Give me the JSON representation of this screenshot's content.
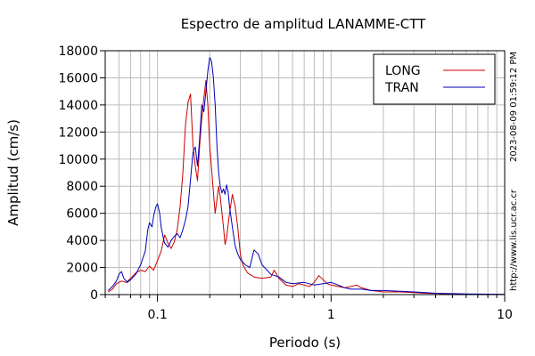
{
  "chart_data": {
    "type": "line",
    "title": "Espectro de amplitud LANAMME-CTT",
    "xlabel": "Periodo (s)",
    "ylabel": "Amplitud (cm/s)",
    "x_scale": "log",
    "xlim": [
      0.05,
      10
    ],
    "ylim": [
      0,
      18000
    ],
    "grid": true,
    "legend_position": "top-right",
    "x_tick_labels": [
      {
        "value": 0.1,
        "label": "0.1"
      },
      {
        "value": 1,
        "label": "1"
      },
      {
        "value": 10,
        "label": "10"
      }
    ],
    "y_ticks": [
      0,
      2000,
      4000,
      6000,
      8000,
      10000,
      12000,
      14000,
      16000,
      18000
    ],
    "side_annotations": [
      "2023-08-09 01:59:12 PM",
      "http://www.lis.ucr.ac.cr"
    ],
    "series": [
      {
        "name": "LONG",
        "color": "#cc0000",
        "points": [
          [
            0.052,
            200
          ],
          [
            0.055,
            400
          ],
          [
            0.058,
            800
          ],
          [
            0.062,
            1000
          ],
          [
            0.066,
            900
          ],
          [
            0.07,
            1200
          ],
          [
            0.075,
            1600
          ],
          [
            0.08,
            1800
          ],
          [
            0.085,
            1700
          ],
          [
            0.09,
            2100
          ],
          [
            0.095,
            1800
          ],
          [
            0.1,
            2500
          ],
          [
            0.105,
            3200
          ],
          [
            0.11,
            4400
          ],
          [
            0.115,
            3800
          ],
          [
            0.12,
            3400
          ],
          [
            0.125,
            3900
          ],
          [
            0.13,
            4800
          ],
          [
            0.135,
            6500
          ],
          [
            0.14,
            9000
          ],
          [
            0.145,
            12500
          ],
          [
            0.15,
            14200
          ],
          [
            0.155,
            14800
          ],
          [
            0.16,
            11000
          ],
          [
            0.165,
            9500
          ],
          [
            0.17,
            8400
          ],
          [
            0.175,
            11000
          ],
          [
            0.18,
            13000
          ],
          [
            0.185,
            14500
          ],
          [
            0.19,
            15800
          ],
          [
            0.195,
            14000
          ],
          [
            0.2,
            11000
          ],
          [
            0.21,
            7600
          ],
          [
            0.215,
            6000
          ],
          [
            0.22,
            7000
          ],
          [
            0.225,
            8000
          ],
          [
            0.23,
            7200
          ],
          [
            0.24,
            5000
          ],
          [
            0.245,
            3700
          ],
          [
            0.25,
            4200
          ],
          [
            0.26,
            6000
          ],
          [
            0.27,
            7400
          ],
          [
            0.28,
            6500
          ],
          [
            0.29,
            5000
          ],
          [
            0.3,
            3000
          ],
          [
            0.31,
            2200
          ],
          [
            0.33,
            1600
          ],
          [
            0.36,
            1300
          ],
          [
            0.4,
            1200
          ],
          [
            0.45,
            1300
          ],
          [
            0.47,
            1800
          ],
          [
            0.5,
            1200
          ],
          [
            0.55,
            700
          ],
          [
            0.6,
            600
          ],
          [
            0.65,
            800
          ],
          [
            0.7,
            700
          ],
          [
            0.75,
            600
          ],
          [
            0.8,
            900
          ],
          [
            0.85,
            1400
          ],
          [
            0.9,
            1100
          ],
          [
            0.95,
            800
          ],
          [
            1.0,
            700
          ],
          [
            1.1,
            600
          ],
          [
            1.2,
            500
          ],
          [
            1.3,
            600
          ],
          [
            1.4,
            700
          ],
          [
            1.5,
            500
          ],
          [
            1.7,
            300
          ],
          [
            2.0,
            200
          ],
          [
            2.5,
            200
          ],
          [
            3.0,
            150
          ],
          [
            3.5,
            100
          ],
          [
            4.0,
            80
          ],
          [
            5.0,
            50
          ],
          [
            6.0,
            30
          ],
          [
            8.0,
            20
          ],
          [
            10.0,
            15
          ]
        ]
      },
      {
        "name": "TRAN",
        "color": "#0000bb",
        "points": [
          [
            0.052,
            300
          ],
          [
            0.055,
            600
          ],
          [
            0.058,
            1000
          ],
          [
            0.06,
            1500
          ],
          [
            0.062,
            1700
          ],
          [
            0.064,
            1200
          ],
          [
            0.067,
            900
          ],
          [
            0.07,
            1100
          ],
          [
            0.075,
            1500
          ],
          [
            0.08,
            2200
          ],
          [
            0.085,
            3200
          ],
          [
            0.088,
            4800
          ],
          [
            0.09,
            5300
          ],
          [
            0.093,
            5000
          ],
          [
            0.095,
            5800
          ],
          [
            0.098,
            6500
          ],
          [
            0.1,
            6700
          ],
          [
            0.103,
            6000
          ],
          [
            0.105,
            5000
          ],
          [
            0.108,
            4200
          ],
          [
            0.11,
            3800
          ],
          [
            0.115,
            3500
          ],
          [
            0.12,
            4000
          ],
          [
            0.125,
            4300
          ],
          [
            0.13,
            4500
          ],
          [
            0.135,
            4200
          ],
          [
            0.14,
            4800
          ],
          [
            0.145,
            5500
          ],
          [
            0.15,
            6500
          ],
          [
            0.155,
            8500
          ],
          [
            0.16,
            10500
          ],
          [
            0.165,
            10900
          ],
          [
            0.17,
            9500
          ],
          [
            0.175,
            11500
          ],
          [
            0.18,
            14000
          ],
          [
            0.185,
            13500
          ],
          [
            0.19,
            15000
          ],
          [
            0.195,
            16500
          ],
          [
            0.2,
            17500
          ],
          [
            0.205,
            17200
          ],
          [
            0.21,
            16000
          ],
          [
            0.215,
            14000
          ],
          [
            0.22,
            11000
          ],
          [
            0.225,
            9000
          ],
          [
            0.23,
            8000
          ],
          [
            0.235,
            7500
          ],
          [
            0.24,
            7800
          ],
          [
            0.245,
            7400
          ],
          [
            0.25,
            8100
          ],
          [
            0.255,
            7600
          ],
          [
            0.26,
            6500
          ],
          [
            0.27,
            5000
          ],
          [
            0.28,
            3600
          ],
          [
            0.29,
            3000
          ],
          [
            0.3,
            2600
          ],
          [
            0.32,
            2200
          ],
          [
            0.34,
            2000
          ],
          [
            0.36,
            3300
          ],
          [
            0.38,
            3000
          ],
          [
            0.4,
            2200
          ],
          [
            0.45,
            1500
          ],
          [
            0.5,
            1300
          ],
          [
            0.55,
            900
          ],
          [
            0.6,
            800
          ],
          [
            0.7,
            900
          ],
          [
            0.8,
            700
          ],
          [
            0.9,
            800
          ],
          [
            1.0,
            900
          ],
          [
            1.1,
            700
          ],
          [
            1.2,
            500
          ],
          [
            1.3,
            400
          ],
          [
            1.5,
            400
          ],
          [
            1.7,
            300
          ],
          [
            2.0,
            300
          ],
          [
            2.5,
            250
          ],
          [
            3.0,
            200
          ],
          [
            3.5,
            150
          ],
          [
            4.0,
            100
          ],
          [
            5.0,
            70
          ],
          [
            6.0,
            50
          ],
          [
            8.0,
            30
          ],
          [
            10.0,
            20
          ]
        ]
      }
    ]
  }
}
